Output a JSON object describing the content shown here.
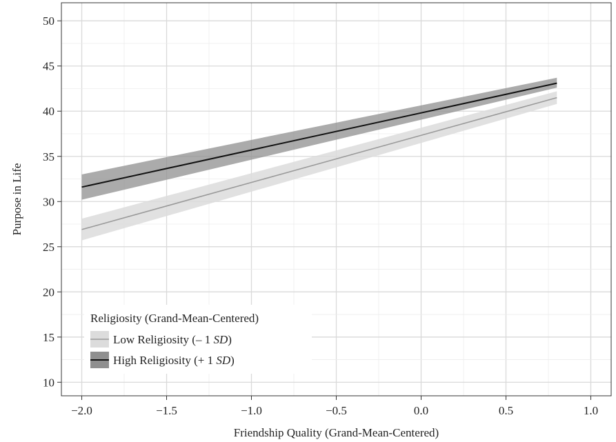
{
  "chart_data": {
    "type": "line",
    "xlabel": "Friendship Quality (Grand-Mean-Centered)",
    "ylabel": "Purpose in Life",
    "xlim": [
      -2.12,
      1.12
    ],
    "ylim": [
      8.5,
      52
    ],
    "xticks": [
      -2.0,
      -1.5,
      -1.0,
      -0.5,
      0.0,
      0.5,
      1.0
    ],
    "xtick_labels": [
      "−2.0",
      "−1.5",
      "−1.0",
      "−0.5",
      "0.0",
      "0.5",
      "1.0"
    ],
    "yticks": [
      10,
      15,
      20,
      25,
      30,
      35,
      40,
      45,
      50
    ],
    "ytick_labels": [
      "10",
      "15",
      "20",
      "25",
      "30",
      "35",
      "40",
      "45",
      "50"
    ],
    "grid": true,
    "legend_position": "bottom-left",
    "legend_title": "Religiosity (Grand-Mean-Centered)",
    "series": [
      {
        "name": "Low Religiosity (– 1 SD)",
        "name_prefix": "Low Religiosity (– 1 ",
        "name_italic": "SD",
        "name_suffix": ")",
        "line_color": "#9a9a9a",
        "band_color": "#dcdcdc",
        "x": [
          -2.0,
          0.8
        ],
        "y": [
          26.9,
          41.5
        ],
        "lower": [
          25.7,
          40.8
        ],
        "upper": [
          28.1,
          42.2
        ]
      },
      {
        "name": "High Religiosity (+ 1 SD)",
        "name_prefix": "High Religiosity (+ 1 ",
        "name_italic": "SD",
        "name_suffix": ")",
        "line_color": "#111111",
        "band_color": "#8f8f8f",
        "x": [
          -2.0,
          0.8
        ],
        "y": [
          31.6,
          43.1
        ],
        "lower": [
          30.2,
          42.6
        ],
        "upper": [
          33.0,
          43.7
        ]
      }
    ]
  }
}
